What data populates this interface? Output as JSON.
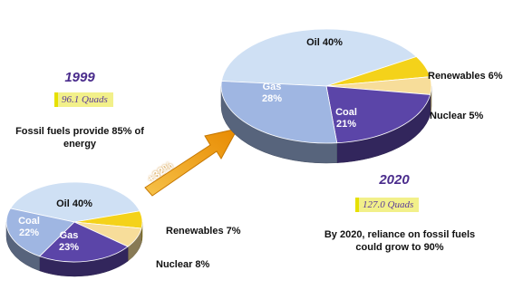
{
  "chart_data": [
    {
      "type": "pie",
      "year": "1999",
      "total": "96.1 Quads",
      "caption": "Fossil fuels provide 85% of energy",
      "slices": [
        {
          "name": "Oil",
          "value": 40,
          "label": "Oil 40%",
          "color": "#cfe0f4"
        },
        {
          "name": "Renewables",
          "value": 7,
          "label": "Renewables 7%",
          "color": "#f4d21a"
        },
        {
          "name": "Nuclear",
          "value": 8,
          "label": "Nuclear 8%",
          "color": "#f7dd9a"
        },
        {
          "name": "Gas",
          "value": 23,
          "label": "Gas 23%",
          "color": "#5b45a8"
        },
        {
          "name": "Coal",
          "value": 22,
          "label": "Coal 22%",
          "color": "#9fb6e2"
        }
      ]
    },
    {
      "type": "pie",
      "year": "2020",
      "total": "127.0 Quads",
      "caption": "By 2020, reliance on fossil fuels could grow to 90%",
      "slices": [
        {
          "name": "Oil",
          "value": 40,
          "label": "Oil 40%",
          "color": "#cfe0f4"
        },
        {
          "name": "Renewables",
          "value": 6,
          "label": "Renewables 6%",
          "color": "#f4d21a"
        },
        {
          "name": "Nuclear",
          "value": 5,
          "label": "Nuclear 5%",
          "color": "#f7dd9a"
        },
        {
          "name": "Coal",
          "value": 21,
          "label": "Coal 21%",
          "color": "#5b45a8"
        },
        {
          "name": "Gas",
          "value": 28,
          "label": "Gas 28%",
          "color": "#9fb6e2"
        }
      ]
    }
  ],
  "growth": "+32%"
}
